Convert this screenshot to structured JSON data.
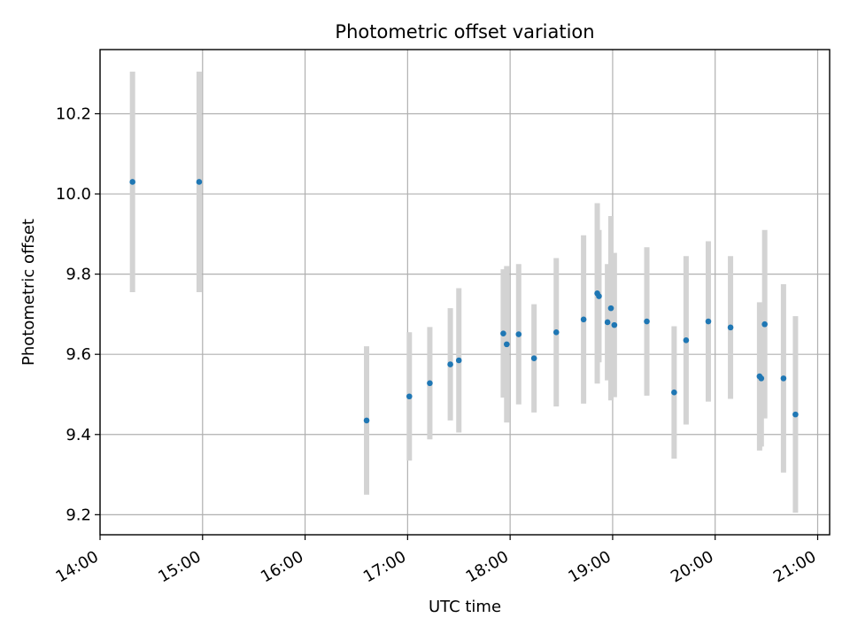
{
  "chart_data": {
    "type": "scatter",
    "title": "Photometric offset variation",
    "xlabel": "UTC time",
    "ylabel": "Photometric offset",
    "x_axis": "time",
    "xlim": [
      "14:00",
      "21:07"
    ],
    "ylim": [
      9.15,
      10.36
    ],
    "xticks": [
      "14:00",
      "15:00",
      "16:00",
      "17:00",
      "18:00",
      "19:00",
      "20:00",
      "21:00"
    ],
    "yticks": [
      9.2,
      9.4,
      9.6,
      9.8,
      10.0,
      10.2
    ],
    "grid": true,
    "marker_color": "#1f77b4",
    "errorbar_color": "#d3d3d3",
    "points": [
      {
        "x": "14:19",
        "y": 10.03,
        "yerr": 0.275
      },
      {
        "x": "14:58",
        "y": 10.03,
        "yerr": 0.275
      },
      {
        "x": "16:36",
        "y": 9.435,
        "yerr": 0.185
      },
      {
        "x": "17:01",
        "y": 9.495,
        "yerr": 0.16
      },
      {
        "x": "17:13",
        "y": 9.528,
        "yerr": 0.14
      },
      {
        "x": "17:25",
        "y": 9.575,
        "yerr": 0.14
      },
      {
        "x": "17:30",
        "y": 9.585,
        "yerr": 0.18
      },
      {
        "x": "17:56",
        "y": 9.652,
        "yerr": 0.16
      },
      {
        "x": "17:58",
        "y": 9.625,
        "yerr": 0.195
      },
      {
        "x": "18:05",
        "y": 9.65,
        "yerr": 0.175
      },
      {
        "x": "18:14",
        "y": 9.59,
        "yerr": 0.135
      },
      {
        "x": "18:27",
        "y": 9.655,
        "yerr": 0.185
      },
      {
        "x": "18:43",
        "y": 9.687,
        "yerr": 0.21
      },
      {
        "x": "18:51",
        "y": 9.752,
        "yerr": 0.225
      },
      {
        "x": "18:52",
        "y": 9.745,
        "yerr": 0.165
      },
      {
        "x": "18:57",
        "y": 9.68,
        "yerr": 0.145
      },
      {
        "x": "18:59",
        "y": 9.715,
        "yerr": 0.23
      },
      {
        "x": "19:01",
        "y": 9.673,
        "yerr": 0.18
      },
      {
        "x": "19:20",
        "y": 9.682,
        "yerr": 0.185
      },
      {
        "x": "19:36",
        "y": 9.505,
        "yerr": 0.165
      },
      {
        "x": "19:43",
        "y": 9.635,
        "yerr": 0.21
      },
      {
        "x": "19:56",
        "y": 9.682,
        "yerr": 0.2
      },
      {
        "x": "20:09",
        "y": 9.667,
        "yerr": 0.178
      },
      {
        "x": "20:26",
        "y": 9.545,
        "yerr": 0.185
      },
      {
        "x": "20:27",
        "y": 9.54,
        "yerr": 0.17
      },
      {
        "x": "20:29",
        "y": 9.675,
        "yerr": 0.235
      },
      {
        "x": "20:40",
        "y": 9.54,
        "yerr": 0.235
      },
      {
        "x": "20:47",
        "y": 9.45,
        "yerr": 0.245
      }
    ]
  }
}
